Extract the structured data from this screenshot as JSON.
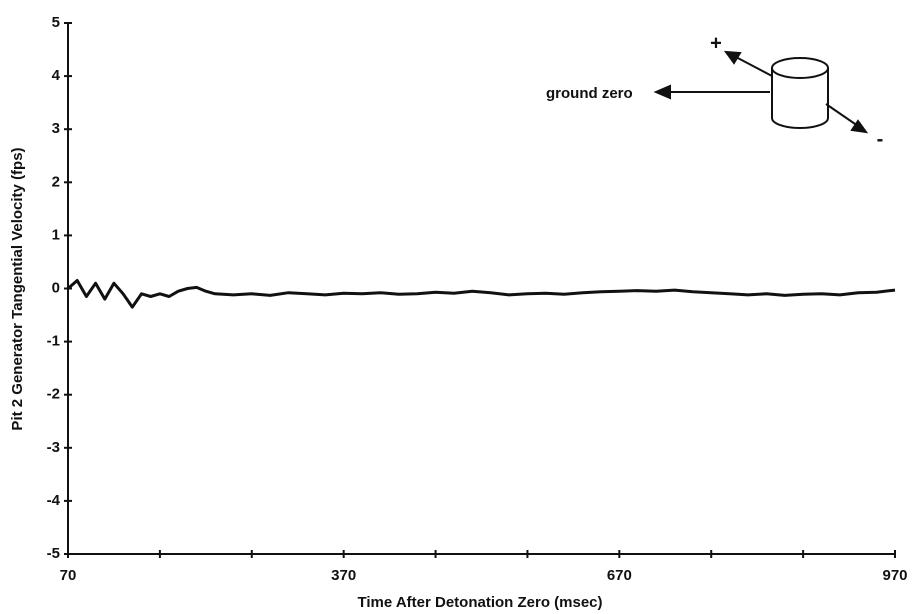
{
  "chart_data": {
    "type": "line",
    "xlabel": "Time After Detonation Zero (msec)",
    "ylabel": "Pit 2 Generator Tangential Velocity (fps)",
    "annotations": [
      "ground zero",
      "+",
      "-"
    ],
    "x": [
      70,
      80,
      90,
      100,
      110,
      120,
      130,
      140,
      150,
      160,
      170,
      180,
      190,
      200,
      210,
      220,
      230,
      250,
      270,
      290,
      310,
      330,
      350,
      370,
      390,
      410,
      430,
      450,
      470,
      490,
      510,
      530,
      550,
      570,
      590,
      610,
      630,
      650,
      670,
      690,
      710,
      730,
      750,
      770,
      790,
      810,
      830,
      850,
      870,
      890,
      910,
      930,
      950,
      970
    ],
    "values": [
      0,
      0.15,
      -0.15,
      0.1,
      -0.2,
      0.1,
      -0.1,
      -0.35,
      -0.1,
      -0.15,
      -0.1,
      -0.15,
      -0.05,
      0,
      0.02,
      -0.05,
      -0.1,
      -0.12,
      -0.1,
      -0.13,
      -0.08,
      -0.1,
      -0.12,
      -0.09,
      -0.1,
      -0.08,
      -0.11,
      -0.1,
      -0.07,
      -0.09,
      -0.05,
      -0.08,
      -0.12,
      -0.1,
      -0.09,
      -0.11,
      -0.08,
      -0.06,
      -0.05,
      -0.04,
      -0.05,
      -0.03,
      -0.06,
      -0.08,
      -0.1,
      -0.12,
      -0.1,
      -0.13,
      -0.11,
      -0.1,
      -0.12,
      -0.08,
      -0.07,
      -0.03
    ],
    "color": "#111111",
    "xlim": [
      70,
      970
    ],
    "xticks": [
      70,
      370,
      670,
      970
    ],
    "xminorticks": [
      170,
      270,
      470,
      570,
      770,
      870
    ],
    "ylim": [
      -5,
      5
    ],
    "yticks": [
      -5,
      -4,
      -3,
      -2,
      -1,
      0,
      1,
      2,
      3,
      4,
      5
    ],
    "grid": false
  }
}
